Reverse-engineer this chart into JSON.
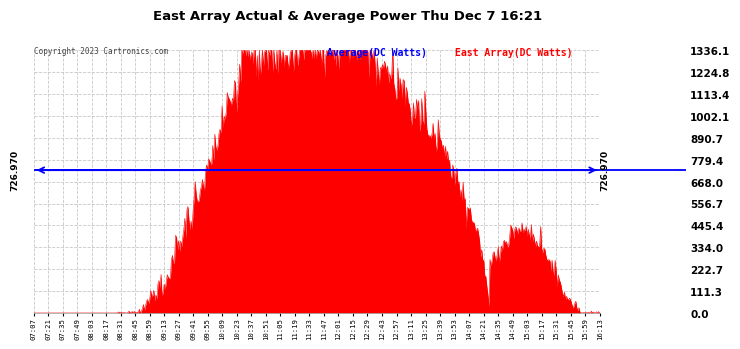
{
  "title": "East Array Actual & Average Power Thu Dec 7 16:21",
  "copyright": "Copyright 2023 Cartronics.com",
  "legend_avg": "Average(DC Watts)",
  "legend_east": "East Array(DC Watts)",
  "avg_value": 726.97,
  "ymax": 1336.1,
  "ymin": 0.0,
  "yticks": [
    0.0,
    111.3,
    222.7,
    334.0,
    445.4,
    556.7,
    668.0,
    779.4,
    890.7,
    1002.1,
    1113.4,
    1224.8,
    1336.1
  ],
  "bg_color": "#ffffff",
  "fill_color": "#ff0000",
  "avg_line_color": "#0000ff",
  "grid_color": "#c8c8c8",
  "title_color": "#000000",
  "avg_label_color": "#0000ff",
  "east_label_color": "#ff0000",
  "xtick_labels": [
    "07:07",
    "07:21",
    "07:35",
    "07:49",
    "08:03",
    "08:17",
    "08:31",
    "08:45",
    "08:59",
    "09:13",
    "09:27",
    "09:41",
    "09:55",
    "10:09",
    "10:23",
    "10:37",
    "10:51",
    "11:05",
    "11:19",
    "11:33",
    "11:47",
    "12:01",
    "12:15",
    "12:29",
    "12:43",
    "12:57",
    "13:11",
    "13:25",
    "13:39",
    "13:53",
    "14:07",
    "14:21",
    "14:35",
    "14:49",
    "15:03",
    "15:17",
    "15:31",
    "15:45",
    "15:59",
    "16:13"
  ]
}
